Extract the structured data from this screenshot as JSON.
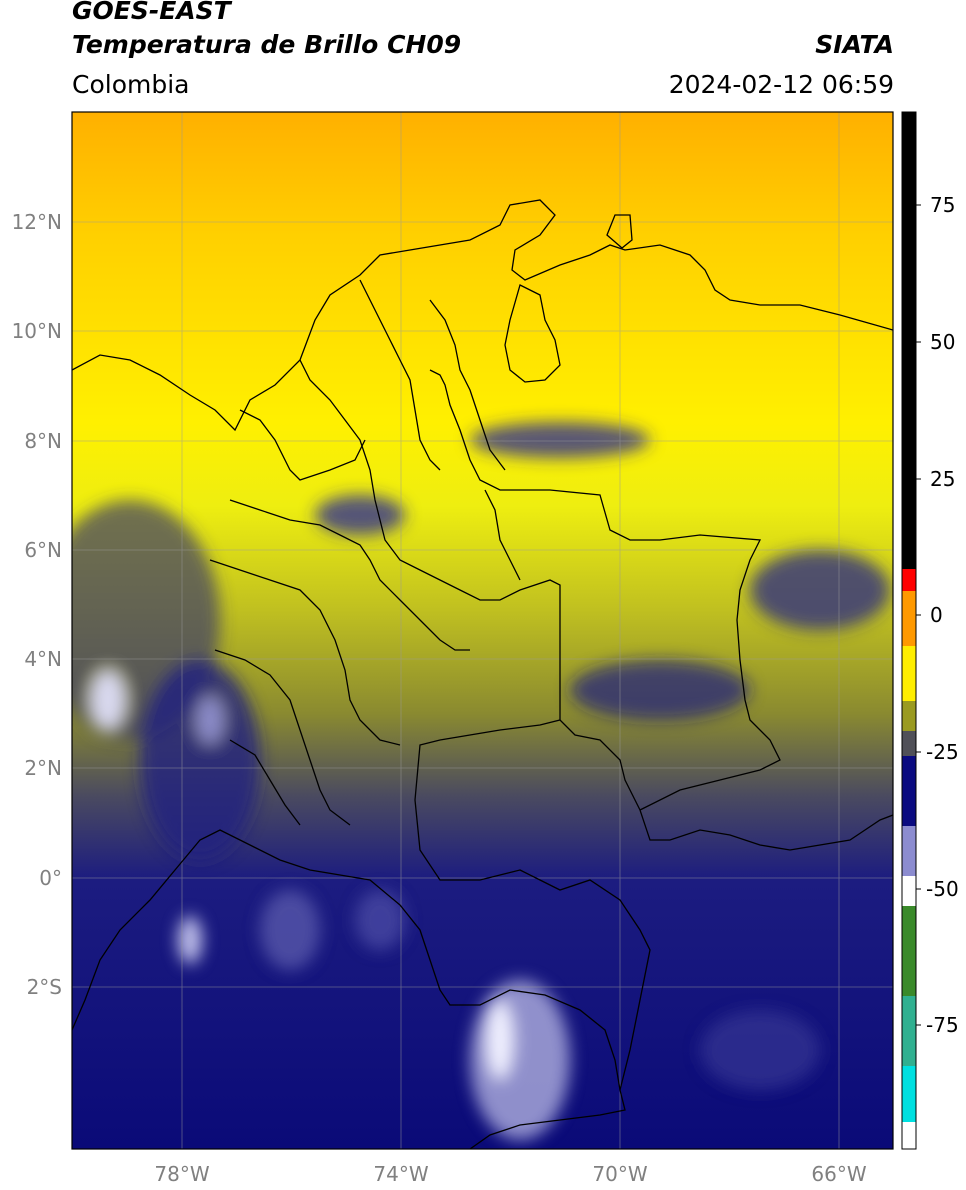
{
  "header": {
    "satellite": "GOES-EAST",
    "product": "Temperatura de Brillo CH09",
    "region": "Colombia",
    "source": "SIATA",
    "datetime": "2024-02-12 06:59"
  },
  "map": {
    "lat_ticks": [
      "12°N",
      "10°N",
      "8°N",
      "6°N",
      "4°N",
      "2°N",
      "0°",
      "2°S"
    ],
    "lon_ticks": [
      "78°W",
      "74°W",
      "70°W",
      "66°W"
    ],
    "grid": true
  },
  "colorbar": {
    "ticks": [
      "75",
      "50",
      "25",
      "0",
      "-25",
      "-50",
      "-75"
    ],
    "colors": {
      "black": "#000000",
      "red": "#ff0000",
      "orange": "#ff9900",
      "yellow": "#ffff00",
      "olive": "#808000",
      "gray": "#555555",
      "navy": "#000080",
      "white": "#ffffff",
      "green": "#228b22",
      "cyan": "#00ffff"
    }
  }
}
